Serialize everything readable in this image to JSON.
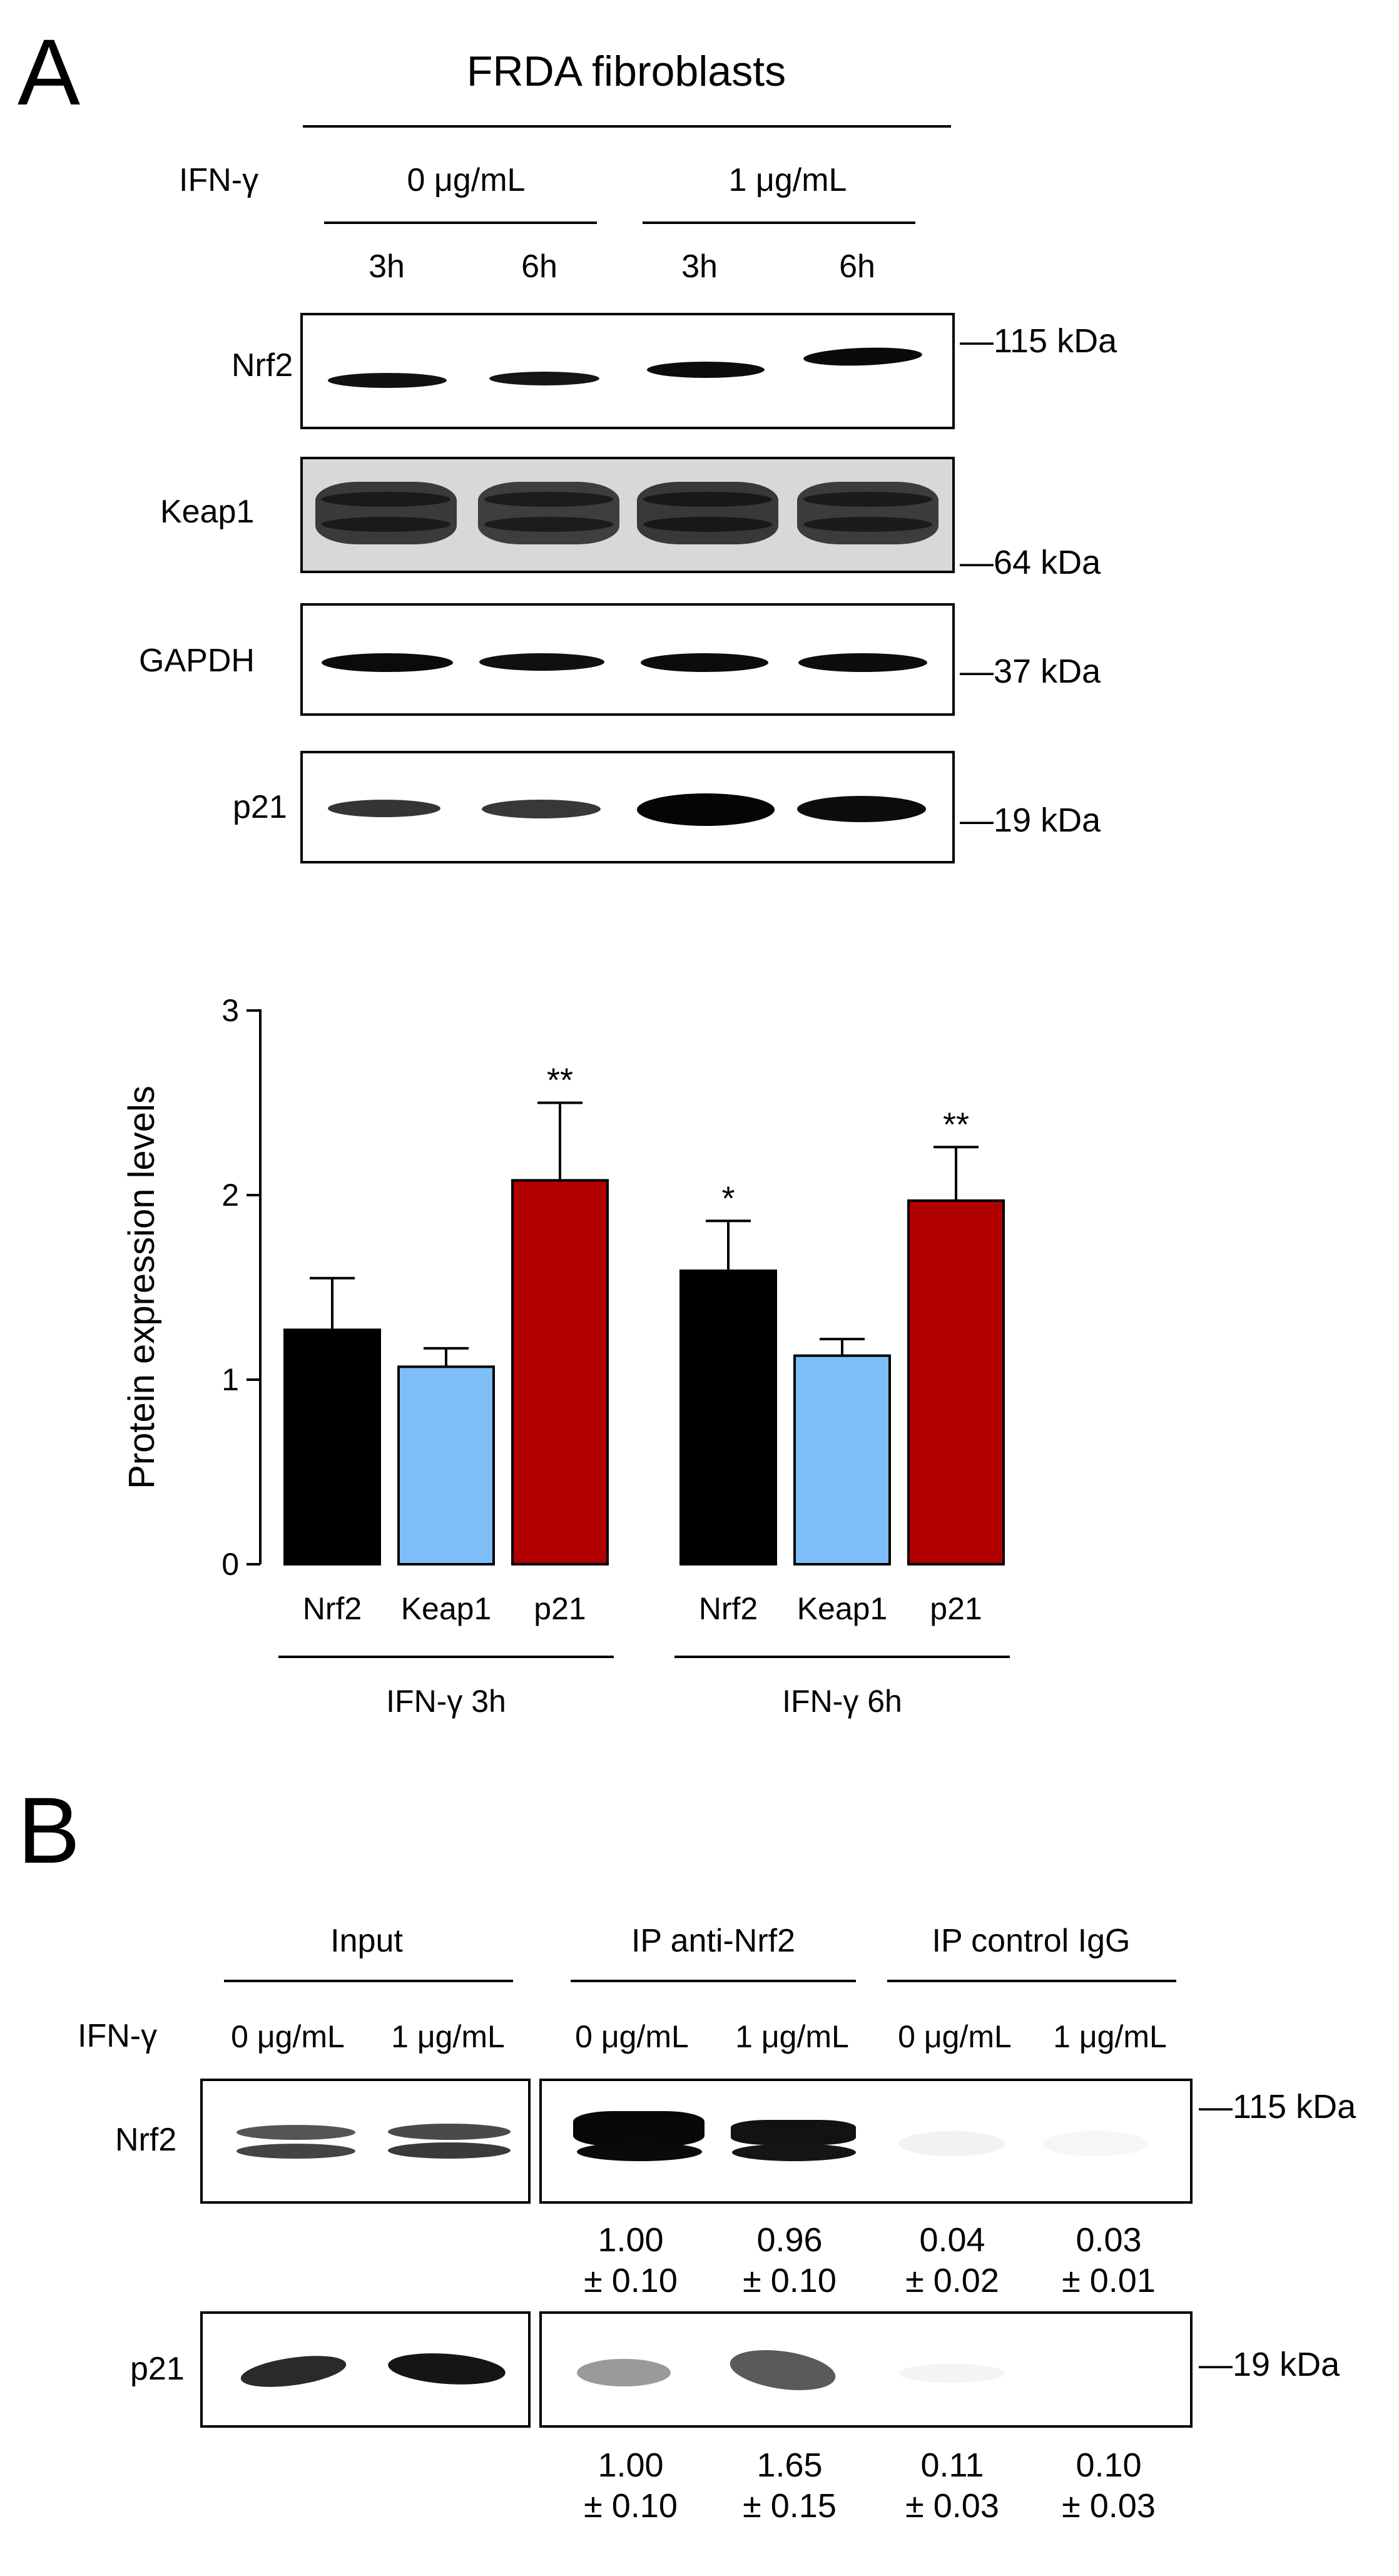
{
  "panel_a": {
    "letter": "A",
    "title": "FRDA fibroblasts",
    "treatment_label": "IFN-γ",
    "dose_0": "0 μg/mL",
    "dose_1": "1 μg/mL",
    "times": [
      "3h",
      "6h",
      "3h",
      "6h"
    ],
    "blots": [
      {
        "label": "Nrf2",
        "marker": "—115 kDa"
      },
      {
        "label": "Keap1",
        "marker": "—64 kDa"
      },
      {
        "label": "GAPDH",
        "marker": "—37 kDa"
      },
      {
        "label": "p21",
        "marker": "—19 kDa"
      }
    ]
  },
  "chart_data": {
    "type": "bar",
    "ylabel": "Protein expression levels",
    "ylim": [
      0,
      3
    ],
    "yticks": [
      "0",
      "1",
      "2",
      "3"
    ],
    "groups": [
      {
        "name": "IFN-γ 3h",
        "categories": [
          "Nrf2",
          "Keap1",
          "p21"
        ],
        "values": [
          1.27,
          1.07,
          2.08
        ],
        "errors": [
          0.28,
          0.1,
          0.42
        ],
        "significance": [
          "",
          "",
          "**"
        ]
      },
      {
        "name": "IFN-γ 6h",
        "categories": [
          "Nrf2",
          "Keap1",
          "p21"
        ],
        "values": [
          1.59,
          1.13,
          1.97
        ],
        "errors": [
          0.27,
          0.09,
          0.29
        ],
        "significance": [
          "*",
          "",
          "**"
        ]
      }
    ],
    "colors": {
      "Nrf2": "#000000",
      "Keap1": "#7dbdf8",
      "p21": "#b20000"
    }
  },
  "panel_b": {
    "letter": "B",
    "headers": [
      "Input",
      "IP anti-Nrf2",
      "IP control IgG"
    ],
    "treatment_label": "IFN-γ",
    "doses": [
      "0 μg/mL",
      "1 μg/mL",
      "0 μg/mL",
      "1 μg/mL",
      "0 μg/mL",
      "1 μg/mL"
    ],
    "blots": [
      {
        "label": "Nrf2",
        "marker": "—115 kDa",
        "quant": [
          {
            "mean": "1.00",
            "sd": "± 0.10"
          },
          {
            "mean": "0.96",
            "sd": "± 0.10"
          },
          {
            "mean": "0.04",
            "sd": "± 0.02"
          },
          {
            "mean": "0.03",
            "sd": "± 0.01"
          }
        ]
      },
      {
        "label": "p21",
        "marker": "—19 kDa",
        "quant": [
          {
            "mean": "1.00",
            "sd": "± 0.10"
          },
          {
            "mean": "1.65",
            "sd": "± 0.15"
          },
          {
            "mean": "0.11",
            "sd": "± 0.03"
          },
          {
            "mean": "0.10",
            "sd": "± 0.03"
          }
        ]
      }
    ]
  }
}
